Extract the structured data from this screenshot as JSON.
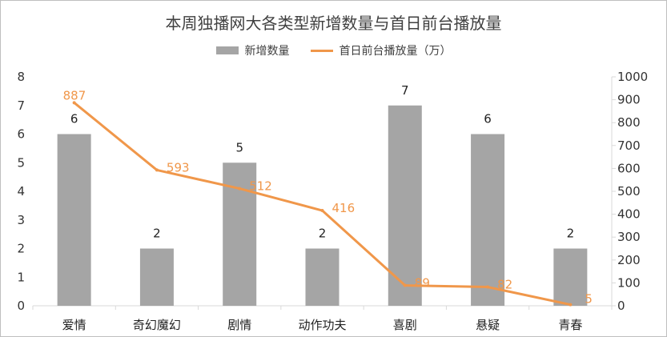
{
  "chart_data": {
    "type": "bar+line",
    "title": "本周独播网大各类型新增数量与首日前台播放量",
    "categories": [
      "爱情",
      "奇幻魔幻",
      "剧情",
      "动作功夫",
      "喜剧",
      "悬疑",
      "青春"
    ],
    "series": [
      {
        "name": "新增数量",
        "type": "bar",
        "axis": "left",
        "color": "#a5a5a5",
        "values": [
          6,
          2,
          5,
          2,
          7,
          6,
          2
        ]
      },
      {
        "name": "首日前台播放量（万）",
        "type": "line",
        "axis": "right",
        "color": "#f0974a",
        "values": [
          887,
          593,
          512,
          416,
          89,
          82,
          5
        ]
      }
    ],
    "y_left": {
      "min": 0,
      "max": 8,
      "step": 1
    },
    "y_right": {
      "min": 0,
      "max": 1000,
      "step": 100
    },
    "legend_position": "top",
    "grid": false
  }
}
